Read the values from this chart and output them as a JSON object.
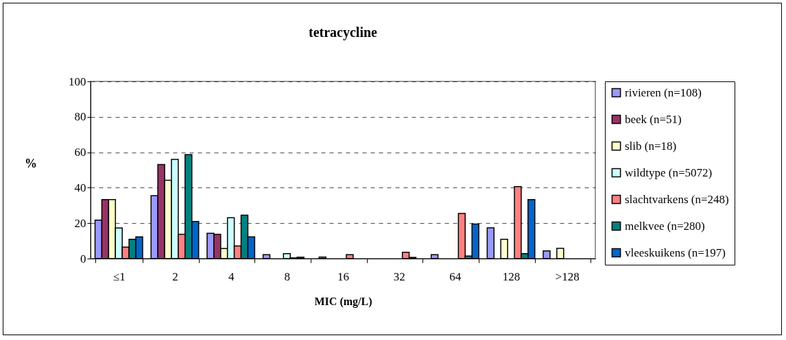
{
  "chart_data": {
    "type": "bar",
    "title": "tetracycline",
    "xlabel": "MIC (mg/L)",
    "ylabel": "%",
    "categories": [
      "≤1",
      "2",
      "4",
      "8",
      "16",
      "32",
      "64",
      "128",
      ">128"
    ],
    "series": [
      {
        "name": "rivieren (n=108)",
        "color": "#9999ff",
        "values": [
          21.7,
          35.5,
          14.3,
          2.2,
          0.9,
          0,
          2.2,
          17.4,
          4.3
        ]
      },
      {
        "name": "beek (n=51)",
        "color": "#993366",
        "values": [
          33.3,
          53.1,
          13.7,
          0,
          0,
          0,
          0,
          0,
          0
        ]
      },
      {
        "name": "slib (n=18)",
        "color": "#ffffcc",
        "values": [
          33.3,
          44.2,
          5.7,
          0,
          0,
          0,
          0,
          10.9,
          5.8
        ]
      },
      {
        "name": "wildtype (n=5072)",
        "color": "#ccffff",
        "values": [
          17.3,
          56,
          23.1,
          2.8,
          0,
          0,
          0,
          0,
          0
        ]
      },
      {
        "name": "slachtvarkens (n=248)",
        "color": "#ff8080",
        "values": [
          6.5,
          13.7,
          7.1,
          0.4,
          2.2,
          3.6,
          25.5,
          40.6,
          0
        ]
      },
      {
        "name": "melkvee (n=280)",
        "color": "#008080",
        "values": [
          10.9,
          58.7,
          24.5,
          0.8,
          0,
          0.7,
          1.4,
          2.8,
          0
        ]
      },
      {
        "name": "vleeskuikens (n=197)",
        "color": "#0066cc",
        "values": [
          12.3,
          20.9,
          12.3,
          0,
          0,
          0,
          19.5,
          33.3,
          0
        ]
      }
    ],
    "ylim": [
      0,
      100
    ],
    "yticks": [
      0,
      20,
      40,
      60,
      80,
      100
    ],
    "grid": "y",
    "legend": "right"
  }
}
